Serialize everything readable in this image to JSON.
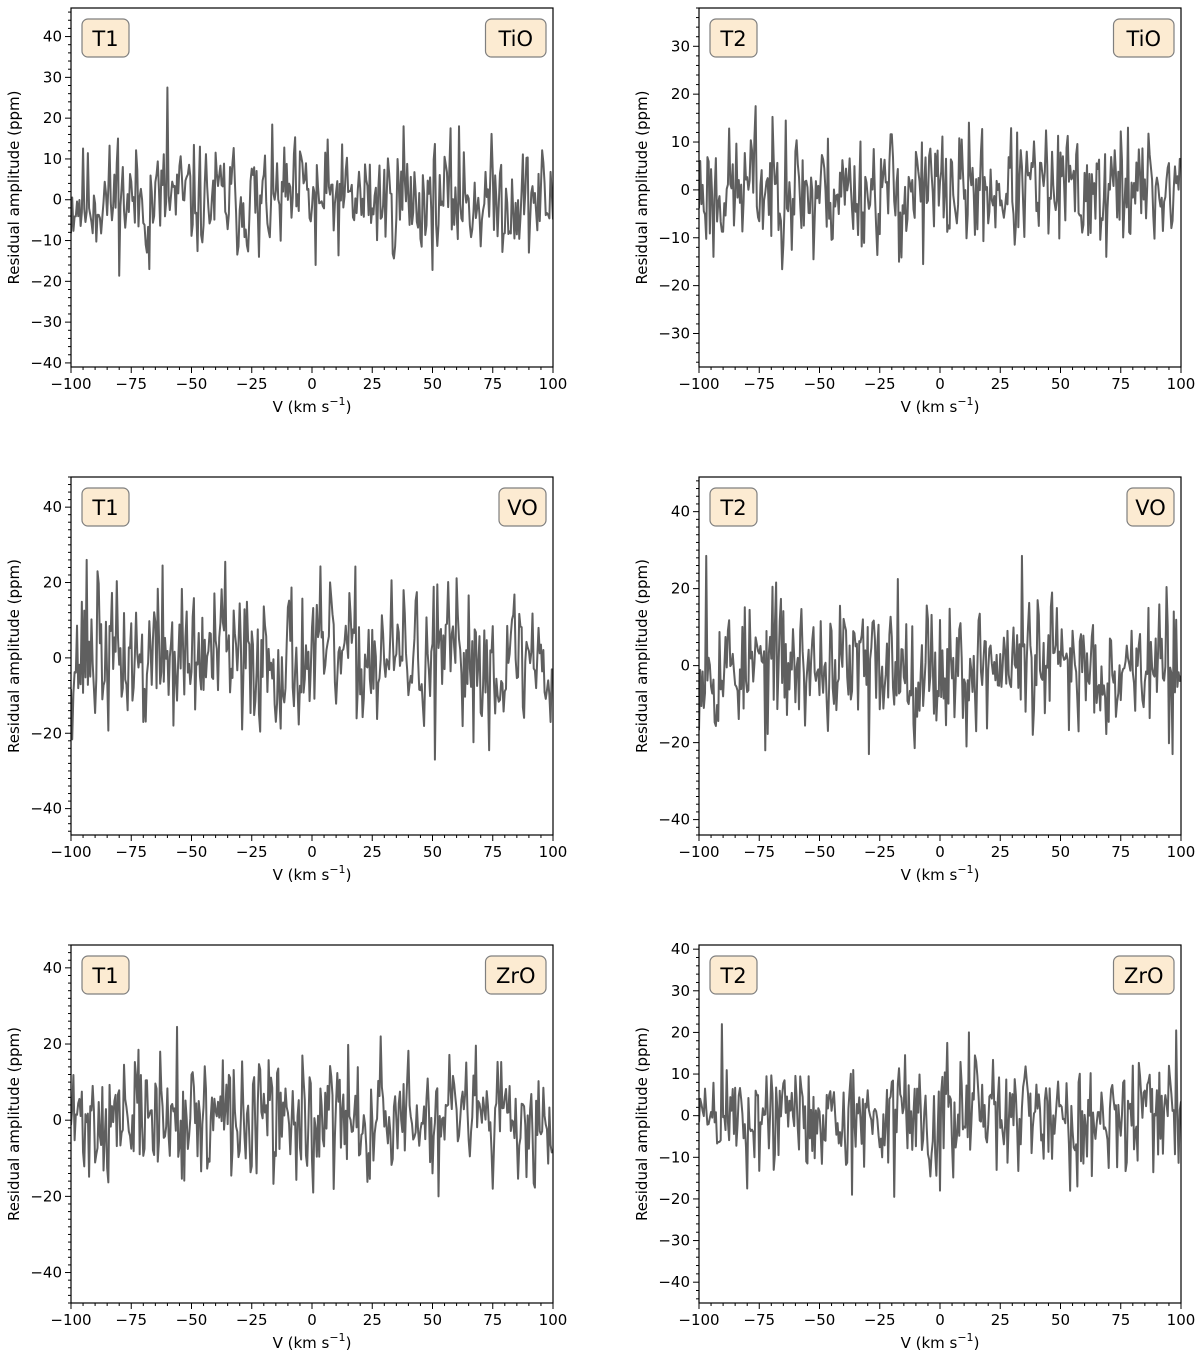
{
  "chart_data": [
    {
      "type": "line",
      "panel_label": "T1",
      "molecule_label": "TiO",
      "xlabel": "V (km s",
      "xlabel_sup": "−1",
      "xlabel_tail": ")",
      "ylabel": "Residual amplitude (ppm)",
      "xlim": [
        -100,
        100
      ],
      "ylim": [
        -41,
        47
      ],
      "xticks": [
        -100,
        -75,
        -50,
        -25,
        0,
        25,
        50,
        75,
        100
      ],
      "yticks": [
        -40,
        -30,
        -20,
        -10,
        0,
        10,
        20,
        30,
        40
      ],
      "line_color": "#5f5f5f",
      "badge_color": "#fcebd2",
      "series": [
        {
          "seed": 11,
          "amplitude": 6.5,
          "spikes": [
            [
              -80.5,
              15
            ],
            [
              -60,
              27.5
            ],
            [
              -67.5,
              -17
            ],
            [
              -22,
              -14
            ],
            [
              1.5,
              -16
            ],
            [
              38,
              18
            ],
            [
              61,
              18
            ],
            [
              -4,
              9
            ]
          ]
        }
      ]
    },
    {
      "type": "line",
      "panel_label": "T2",
      "molecule_label": "TiO",
      "xlabel": "V (km s",
      "xlabel_sup": "−1",
      "xlabel_tail": ")",
      "ylabel": "Residual amplitude (ppm)",
      "xlim": [
        -100,
        100
      ],
      "ylim": [
        -37,
        38
      ],
      "xticks": [
        -100,
        -75,
        -50,
        -25,
        0,
        25,
        50,
        75,
        100
      ],
      "yticks": [
        -30,
        -20,
        -10,
        0,
        10,
        20,
        30
      ],
      "line_color": "#5f5f5f",
      "badge_color": "#fcebd2",
      "series": [
        {
          "seed": 23,
          "amplitude": 6,
          "spikes": [
            [
              -76.5,
              17.5
            ],
            [
              -64,
              14.5
            ],
            [
              -94,
              -14
            ],
            [
              -52.5,
              -14.5
            ],
            [
              -17,
              -15
            ],
            [
              -7,
              -15.5
            ],
            [
              32,
              12
            ],
            [
              78,
              13
            ],
            [
              69,
              -14
            ]
          ]
        }
      ]
    },
    {
      "type": "line",
      "panel_label": "T1",
      "molecule_label": "VO",
      "xlabel": "V (km s",
      "xlabel_sup": "−1",
      "xlabel_tail": ")",
      "ylabel": "Residual amplitude (ppm)",
      "xlim": [
        -100,
        100
      ],
      "ylim": [
        -47,
        48
      ],
      "xticks": [
        -100,
        -75,
        -50,
        -25,
        0,
        25,
        50,
        75,
        100
      ],
      "yticks": [
        -40,
        -20,
        0,
        20,
        40
      ],
      "line_color": "#5f5f5f",
      "badge_color": "#fcebd2",
      "series": [
        {
          "seed": 37,
          "amplitude": 9,
          "spikes": [
            [
              -93.5,
              26
            ],
            [
              -89,
              23
            ],
            [
              -62,
              24.5
            ],
            [
              -36,
              25.5
            ],
            [
              -29,
              -19
            ],
            [
              51,
              -27
            ],
            [
              73.5,
              -24.5
            ],
            [
              -70,
              -17
            ],
            [
              99,
              -17
            ]
          ]
        }
      ]
    },
    {
      "type": "line",
      "panel_label": "T2",
      "molecule_label": "VO",
      "xlabel": "V (km s",
      "xlabel_sup": "−1",
      "xlabel_tail": ")",
      "ylabel": "Residual amplitude (ppm)",
      "xlim": [
        -100,
        100
      ],
      "ylim": [
        -44,
        49
      ],
      "xticks": [
        -100,
        -75,
        -50,
        -25,
        0,
        25,
        50,
        75,
        100
      ],
      "yticks": [
        -40,
        -20,
        0,
        20,
        40
      ],
      "line_color": "#5f5f5f",
      "badge_color": "#fcebd2",
      "series": [
        {
          "seed": 53,
          "amplitude": 8,
          "spikes": [
            [
              -97,
              28.5
            ],
            [
              -69.5,
              20.5
            ],
            [
              -29.5,
              -23
            ],
            [
              -17.5,
              22.5
            ],
            [
              34,
              28.5
            ],
            [
              46.5,
              19
            ],
            [
              11,
              -21
            ],
            [
              -72.5,
              -22
            ],
            [
              96.5,
              -23
            ]
          ]
        }
      ]
    },
    {
      "type": "line",
      "panel_label": "T1",
      "molecule_label": "ZrO",
      "xlabel": "V (km s",
      "xlabel_sup": "−1",
      "xlabel_tail": ")",
      "ylabel": "Residual amplitude (ppm)",
      "xlim": [
        -100,
        100
      ],
      "ylim": [
        -48,
        46
      ],
      "xticks": [
        -100,
        -75,
        -50,
        -25,
        0,
        25,
        50,
        75,
        100
      ],
      "yticks": [
        -40,
        -20,
        0,
        20,
        40
      ],
      "line_color": "#5f5f5f",
      "badge_color": "#fcebd2",
      "series": [
        {
          "seed": 71,
          "amplitude": 7.5,
          "spikes": [
            [
              -56,
              24.5
            ],
            [
              -72,
              18.5
            ],
            [
              -63,
              18
            ],
            [
              0.5,
              -19
            ],
            [
              28.5,
              22
            ],
            [
              52.5,
              -20
            ],
            [
              -4,
              17
            ],
            [
              75,
              -18
            ]
          ]
        }
      ]
    },
    {
      "type": "line",
      "panel_label": "T2",
      "molecule_label": "ZrO",
      "xlabel": "V (km s",
      "xlabel_sup": "−1",
      "xlabel_tail": ")",
      "ylabel": "Residual amplitude (ppm)",
      "xlim": [
        -100,
        100
      ],
      "ylim": [
        -45,
        41
      ],
      "xticks": [
        -100,
        -75,
        -50,
        -25,
        0,
        25,
        50,
        75,
        100
      ],
      "yticks": [
        -40,
        -30,
        -20,
        -10,
        0,
        10,
        20,
        30,
        40
      ],
      "line_color": "#5f5f5f",
      "badge_color": "#fcebd2",
      "series": [
        {
          "seed": 89,
          "amplitude": 6.5,
          "spikes": [
            [
              -90.5,
              22
            ],
            [
              -19,
              22
            ],
            [
              -36.5,
              -19
            ],
            [
              -19,
              -19.5
            ],
            [
              0,
              -18
            ],
            [
              -80,
              -17.5
            ],
            [
              57,
              -17
            ],
            [
              98,
              20.5
            ],
            [
              12,
              20
            ]
          ]
        }
      ]
    }
  ]
}
